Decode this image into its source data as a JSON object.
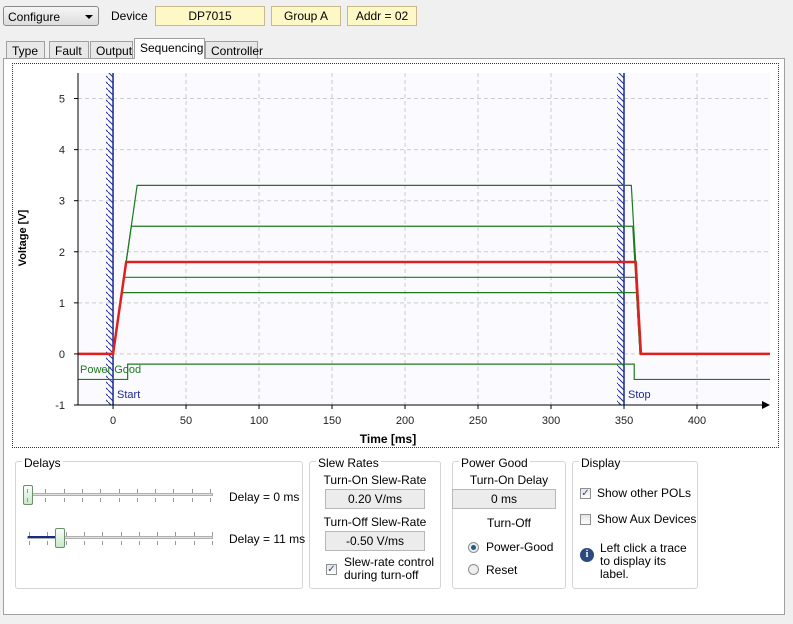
{
  "header": {
    "mode_select": "Configure",
    "device_label": "Device",
    "device": "DP7015",
    "group": "Group A",
    "addr": "Addr = 02"
  },
  "tabs": [
    {
      "label": "Type"
    },
    {
      "label": "Fault"
    },
    {
      "label": "Output"
    },
    {
      "label": "Sequencing",
      "active": true
    },
    {
      "label": "Controller"
    }
  ],
  "chart_data": {
    "type": "line",
    "xlabel": "Time [ms]",
    "ylabel": "Voltage [V]",
    "xlim": [
      -24,
      450
    ],
    "ylim": [
      -1,
      5.5
    ],
    "xticks": [
      0,
      50,
      100,
      150,
      200,
      250,
      300,
      350,
      400
    ],
    "yticks": [
      -1,
      0,
      1,
      2,
      3,
      4,
      5
    ],
    "grid": true,
    "markers": [
      {
        "label": "Start",
        "x": 0
      },
      {
        "label": "Stop",
        "x": 350
      }
    ],
    "series": [
      {
        "color": "#1e7a1e",
        "points": [
          [
            -24,
            0
          ],
          [
            0,
            0
          ],
          [
            16.5,
            3.3
          ],
          [
            355,
            3.3
          ],
          [
            361.6,
            0
          ],
          [
            450,
            0
          ]
        ]
      },
      {
        "color": "#1e7a1e",
        "points": [
          [
            -24,
            0
          ],
          [
            0,
            0
          ],
          [
            12.5,
            2.5
          ],
          [
            356,
            2.5
          ],
          [
            361,
            0
          ],
          [
            450,
            0
          ]
        ]
      },
      {
        "color": "#1e7a1e",
        "points": [
          [
            -24,
            0
          ],
          [
            0,
            0
          ],
          [
            7.5,
            1.5
          ],
          [
            358,
            1.5
          ],
          [
            361,
            0
          ],
          [
            450,
            0
          ]
        ]
      },
      {
        "color": "#1e7a1e",
        "points": [
          [
            -24,
            0
          ],
          [
            0,
            0
          ],
          [
            6,
            1.2
          ],
          [
            358.6,
            1.2
          ],
          [
            361,
            0
          ],
          [
            450,
            0
          ]
        ]
      },
      {
        "color": "#e02020",
        "points": [
          [
            -24,
            0
          ],
          [
            0,
            0
          ],
          [
            9,
            1.8
          ],
          [
            358,
            1.8
          ],
          [
            361.6,
            0
          ],
          [
            450,
            0
          ]
        ]
      },
      {
        "name": "Power Good",
        "color": "#1e7a1e",
        "points": [
          [
            -24,
            -0.5
          ],
          [
            10,
            -0.5
          ],
          [
            10,
            -0.2
          ],
          [
            357,
            -0.2
          ],
          [
            357,
            -0.5
          ],
          [
            450,
            -0.5
          ]
        ]
      }
    ]
  },
  "delays": {
    "title": "Delays",
    "slider1_label": "Delay = 0 ms",
    "slider1_value": 0,
    "slider2_label": "Delay = 11 ms",
    "slider2_value": 11
  },
  "slew": {
    "title": "Slew Rates",
    "on_label": "Turn-On Slew-Rate",
    "on_value": "0.20 V/ms",
    "off_label": "Turn-Off Slew-Rate",
    "off_value": "-0.50 V/ms",
    "control_label_1": "Slew-rate control",
    "control_label_2": "during turn-off",
    "control_checked": true
  },
  "pg": {
    "title": "Power Good",
    "delay_label": "Turn-On Delay",
    "delay_value": "0 ms",
    "off_label": "Turn-Off",
    "opt1": "Power-Good",
    "opt2": "Reset",
    "selected": "Power-Good"
  },
  "display": {
    "title": "Display",
    "show_pols": "Show other POLs",
    "show_pols_checked": true,
    "show_aux": "Show Aux Devices",
    "show_aux_checked": false,
    "info_1": "Left click a trace",
    "info_2": "to display its label."
  }
}
